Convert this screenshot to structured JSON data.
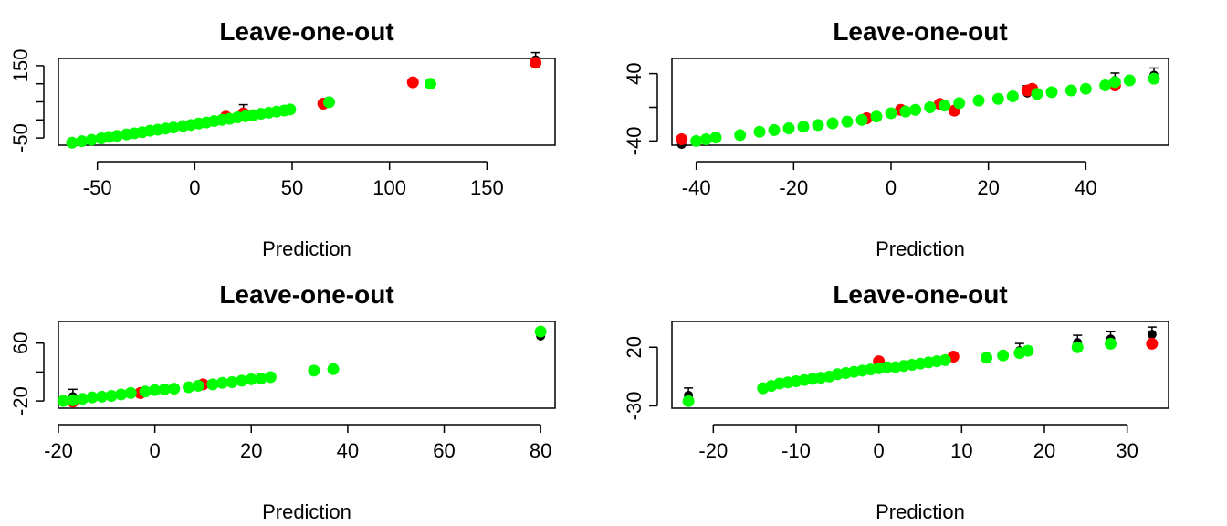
{
  "chart_data": [
    {
      "type": "scatter",
      "title": "Leave-one-out",
      "xlabel": "Prediction",
      "ylabel": "",
      "xlim": [
        -70,
        185
      ],
      "ylim": [
        -70,
        170
      ],
      "xticks": [
        -50,
        0,
        50,
        100,
        150
      ],
      "xtick_labels": [
        "-50",
        "0",
        "50",
        "100",
        "150"
      ],
      "yticks": [
        -50,
        0,
        50,
        100,
        150
      ],
      "ytick_labels": [
        "-50",
        "",
        "",
        "",
        "150"
      ],
      "grid": false,
      "series": [
        {
          "color": "#ff0000",
          "points": [
            [
              16,
              9
            ],
            [
              25,
              18
            ],
            [
              66,
              45
            ],
            [
              112,
              104
            ],
            [
              175,
              158
            ]
          ]
        },
        {
          "color": "#00ff00",
          "points": [
            [
              -63,
              -63
            ],
            [
              -58,
              -59
            ],
            [
              -53,
              -55
            ],
            [
              -48,
              -51
            ],
            [
              -44,
              -47
            ],
            [
              -40,
              -44
            ],
            [
              -35,
              -40
            ],
            [
              -31,
              -37
            ],
            [
              -27,
              -34
            ],
            [
              -23,
              -30
            ],
            [
              -19,
              -27
            ],
            [
              -15,
              -24
            ],
            [
              -11,
              -21
            ],
            [
              -6,
              -17
            ],
            [
              -2,
              -14
            ],
            [
              2,
              -10
            ],
            [
              6,
              -7
            ],
            [
              10,
              -3
            ],
            [
              14,
              0
            ],
            [
              18,
              3
            ],
            [
              22,
              7
            ],
            [
              26,
              10
            ],
            [
              30,
              13
            ],
            [
              34,
              17
            ],
            [
              38,
              20
            ],
            [
              42,
              23
            ],
            [
              46,
              26
            ],
            [
              49,
              29
            ],
            [
              69,
              49
            ],
            [
              121,
              100
            ]
          ]
        },
        {
          "color": "#000000",
          "points": [
            [
              175,
              166
            ],
            [
              25,
              22
            ]
          ]
        }
      ]
    },
    {
      "type": "scatter",
      "title": "Leave-one-out",
      "xlabel": "Prediction",
      "ylabel": "",
      "xlim": [
        -45,
        57
      ],
      "ylim": [
        -45,
        58
      ],
      "xticks": [
        -40,
        -20,
        0,
        20,
        40
      ],
      "xtick_labels": [
        "-40",
        "-20",
        "0",
        "20",
        "40"
      ],
      "yticks": [
        -40,
        0,
        40
      ],
      "ytick_labels": [
        "-40",
        "",
        "40"
      ],
      "grid": false,
      "series": [
        {
          "color": "#ff0000",
          "points": [
            [
              -43,
              -38
            ],
            [
              -5,
              -13
            ],
            [
              2,
              -3
            ],
            [
              10,
              4
            ],
            [
              13,
              -4
            ],
            [
              28,
              20
            ],
            [
              29,
              22
            ],
            [
              46,
              26
            ]
          ]
        },
        {
          "color": "#00ff00",
          "points": [
            [
              -40,
              -40
            ],
            [
              -38,
              -38
            ],
            [
              -36,
              -36
            ],
            [
              -31,
              -33
            ],
            [
              -27,
              -29
            ],
            [
              -24,
              -27
            ],
            [
              -21,
              -25
            ],
            [
              -18,
              -23
            ],
            [
              -15,
              -21
            ],
            [
              -12,
              -19
            ],
            [
              -9,
              -17
            ],
            [
              -6,
              -15
            ],
            [
              -3,
              -11
            ],
            [
              0,
              -7
            ],
            [
              3,
              -5
            ],
            [
              5,
              -3
            ],
            [
              8,
              0
            ],
            [
              11,
              2
            ],
            [
              14,
              5
            ],
            [
              18,
              8
            ],
            [
              22,
              10
            ],
            [
              25,
              13
            ],
            [
              30,
              16
            ],
            [
              33,
              18
            ],
            [
              37,
              20
            ],
            [
              40,
              22
            ],
            [
              44,
              26
            ],
            [
              46,
              30
            ],
            [
              49,
              32
            ],
            [
              54,
              34
            ]
          ]
        },
        {
          "color": "#000000",
          "points": [
            [
              -43,
              -44
            ],
            [
              28,
              17
            ],
            [
              46,
              32
            ],
            [
              54,
              38
            ]
          ]
        }
      ]
    },
    {
      "type": "scatter",
      "title": "Leave-one-out",
      "xlabel": "Prediction",
      "ylabel": "",
      "xlim": [
        -20,
        83
      ],
      "ylim": [
        -30,
        90
      ],
      "xticks": [
        -20,
        0,
        20,
        40,
        60,
        80
      ],
      "xtick_labels": [
        "-20",
        "0",
        "20",
        "40",
        "60",
        "80"
      ],
      "yticks": [
        -20,
        20,
        60
      ],
      "ytick_labels": [
        "-20",
        "",
        "60"
      ],
      "grid": false,
      "series": [
        {
          "color": "#ff0000",
          "points": [
            [
              -17,
              -21
            ],
            [
              -3,
              -9
            ],
            [
              10,
              3
            ]
          ]
        },
        {
          "color": "#00ff00",
          "points": [
            [
              -19,
              -20
            ],
            [
              -17,
              -19
            ],
            [
              -15,
              -17
            ],
            [
              -13,
              -15
            ],
            [
              -11,
              -14
            ],
            [
              -9,
              -13
            ],
            [
              -7,
              -11
            ],
            [
              -5,
              -9
            ],
            [
              -2,
              -7
            ],
            [
              0,
              -5
            ],
            [
              2,
              -4
            ],
            [
              4,
              -3
            ],
            [
              7,
              -1
            ],
            [
              9,
              1
            ],
            [
              12,
              3
            ],
            [
              14,
              5
            ],
            [
              16,
              6
            ],
            [
              18,
              8
            ],
            [
              20,
              10
            ],
            [
              22,
              11
            ],
            [
              24,
              13
            ],
            [
              33,
              22
            ],
            [
              37,
              24
            ],
            [
              80,
              76
            ]
          ]
        },
        {
          "color": "#000000",
          "points": [
            [
              -17,
              -14
            ],
            [
              80,
              70
            ]
          ]
        }
      ]
    },
    {
      "type": "scatter",
      "title": "Leave-one-out",
      "xlabel": "Prediction",
      "ylabel": "",
      "xlim": [
        -25,
        35
      ],
      "ylim": [
        -32,
        42
      ],
      "xticks": [
        -20,
        -10,
        0,
        10,
        20,
        30
      ],
      "xtick_labels": [
        "-20",
        "-10",
        "0",
        "10",
        "20",
        "30"
      ],
      "yticks": [
        -30,
        20
      ],
      "ytick_labels": [
        "-30",
        "20"
      ],
      "grid": false,
      "series": [
        {
          "color": "#ff0000",
          "points": [
            [
              0,
              8
            ],
            [
              9,
              12
            ],
            [
              33,
              23
            ]
          ]
        },
        {
          "color": "#00ff00",
          "points": [
            [
              -23,
              -26
            ],
            [
              -14,
              -15
            ],
            [
              -13,
              -13
            ],
            [
              -12,
              -11
            ],
            [
              -11,
              -10
            ],
            [
              -10,
              -9
            ],
            [
              -9,
              -8
            ],
            [
              -8,
              -7
            ],
            [
              -7,
              -6
            ],
            [
              -6,
              -5
            ],
            [
              -5,
              -3
            ],
            [
              -4,
              -2
            ],
            [
              -3,
              -1
            ],
            [
              -2,
              0
            ],
            [
              -1,
              1
            ],
            [
              0,
              2
            ],
            [
              1,
              3
            ],
            [
              2,
              3
            ],
            [
              3,
              4
            ],
            [
              4,
              5
            ],
            [
              5,
              6
            ],
            [
              6,
              7
            ],
            [
              7,
              8
            ],
            [
              8,
              9
            ],
            [
              13,
              11
            ],
            [
              15,
              13
            ],
            [
              17,
              15
            ],
            [
              18,
              17
            ],
            [
              24,
              20
            ],
            [
              28,
              23
            ]
          ]
        },
        {
          "color": "#000000",
          "points": [
            [
              -23,
              -21
            ],
            [
              24,
              24
            ],
            [
              28,
              27
            ],
            [
              33,
              31
            ],
            [
              17,
              17
            ]
          ]
        }
      ]
    }
  ]
}
